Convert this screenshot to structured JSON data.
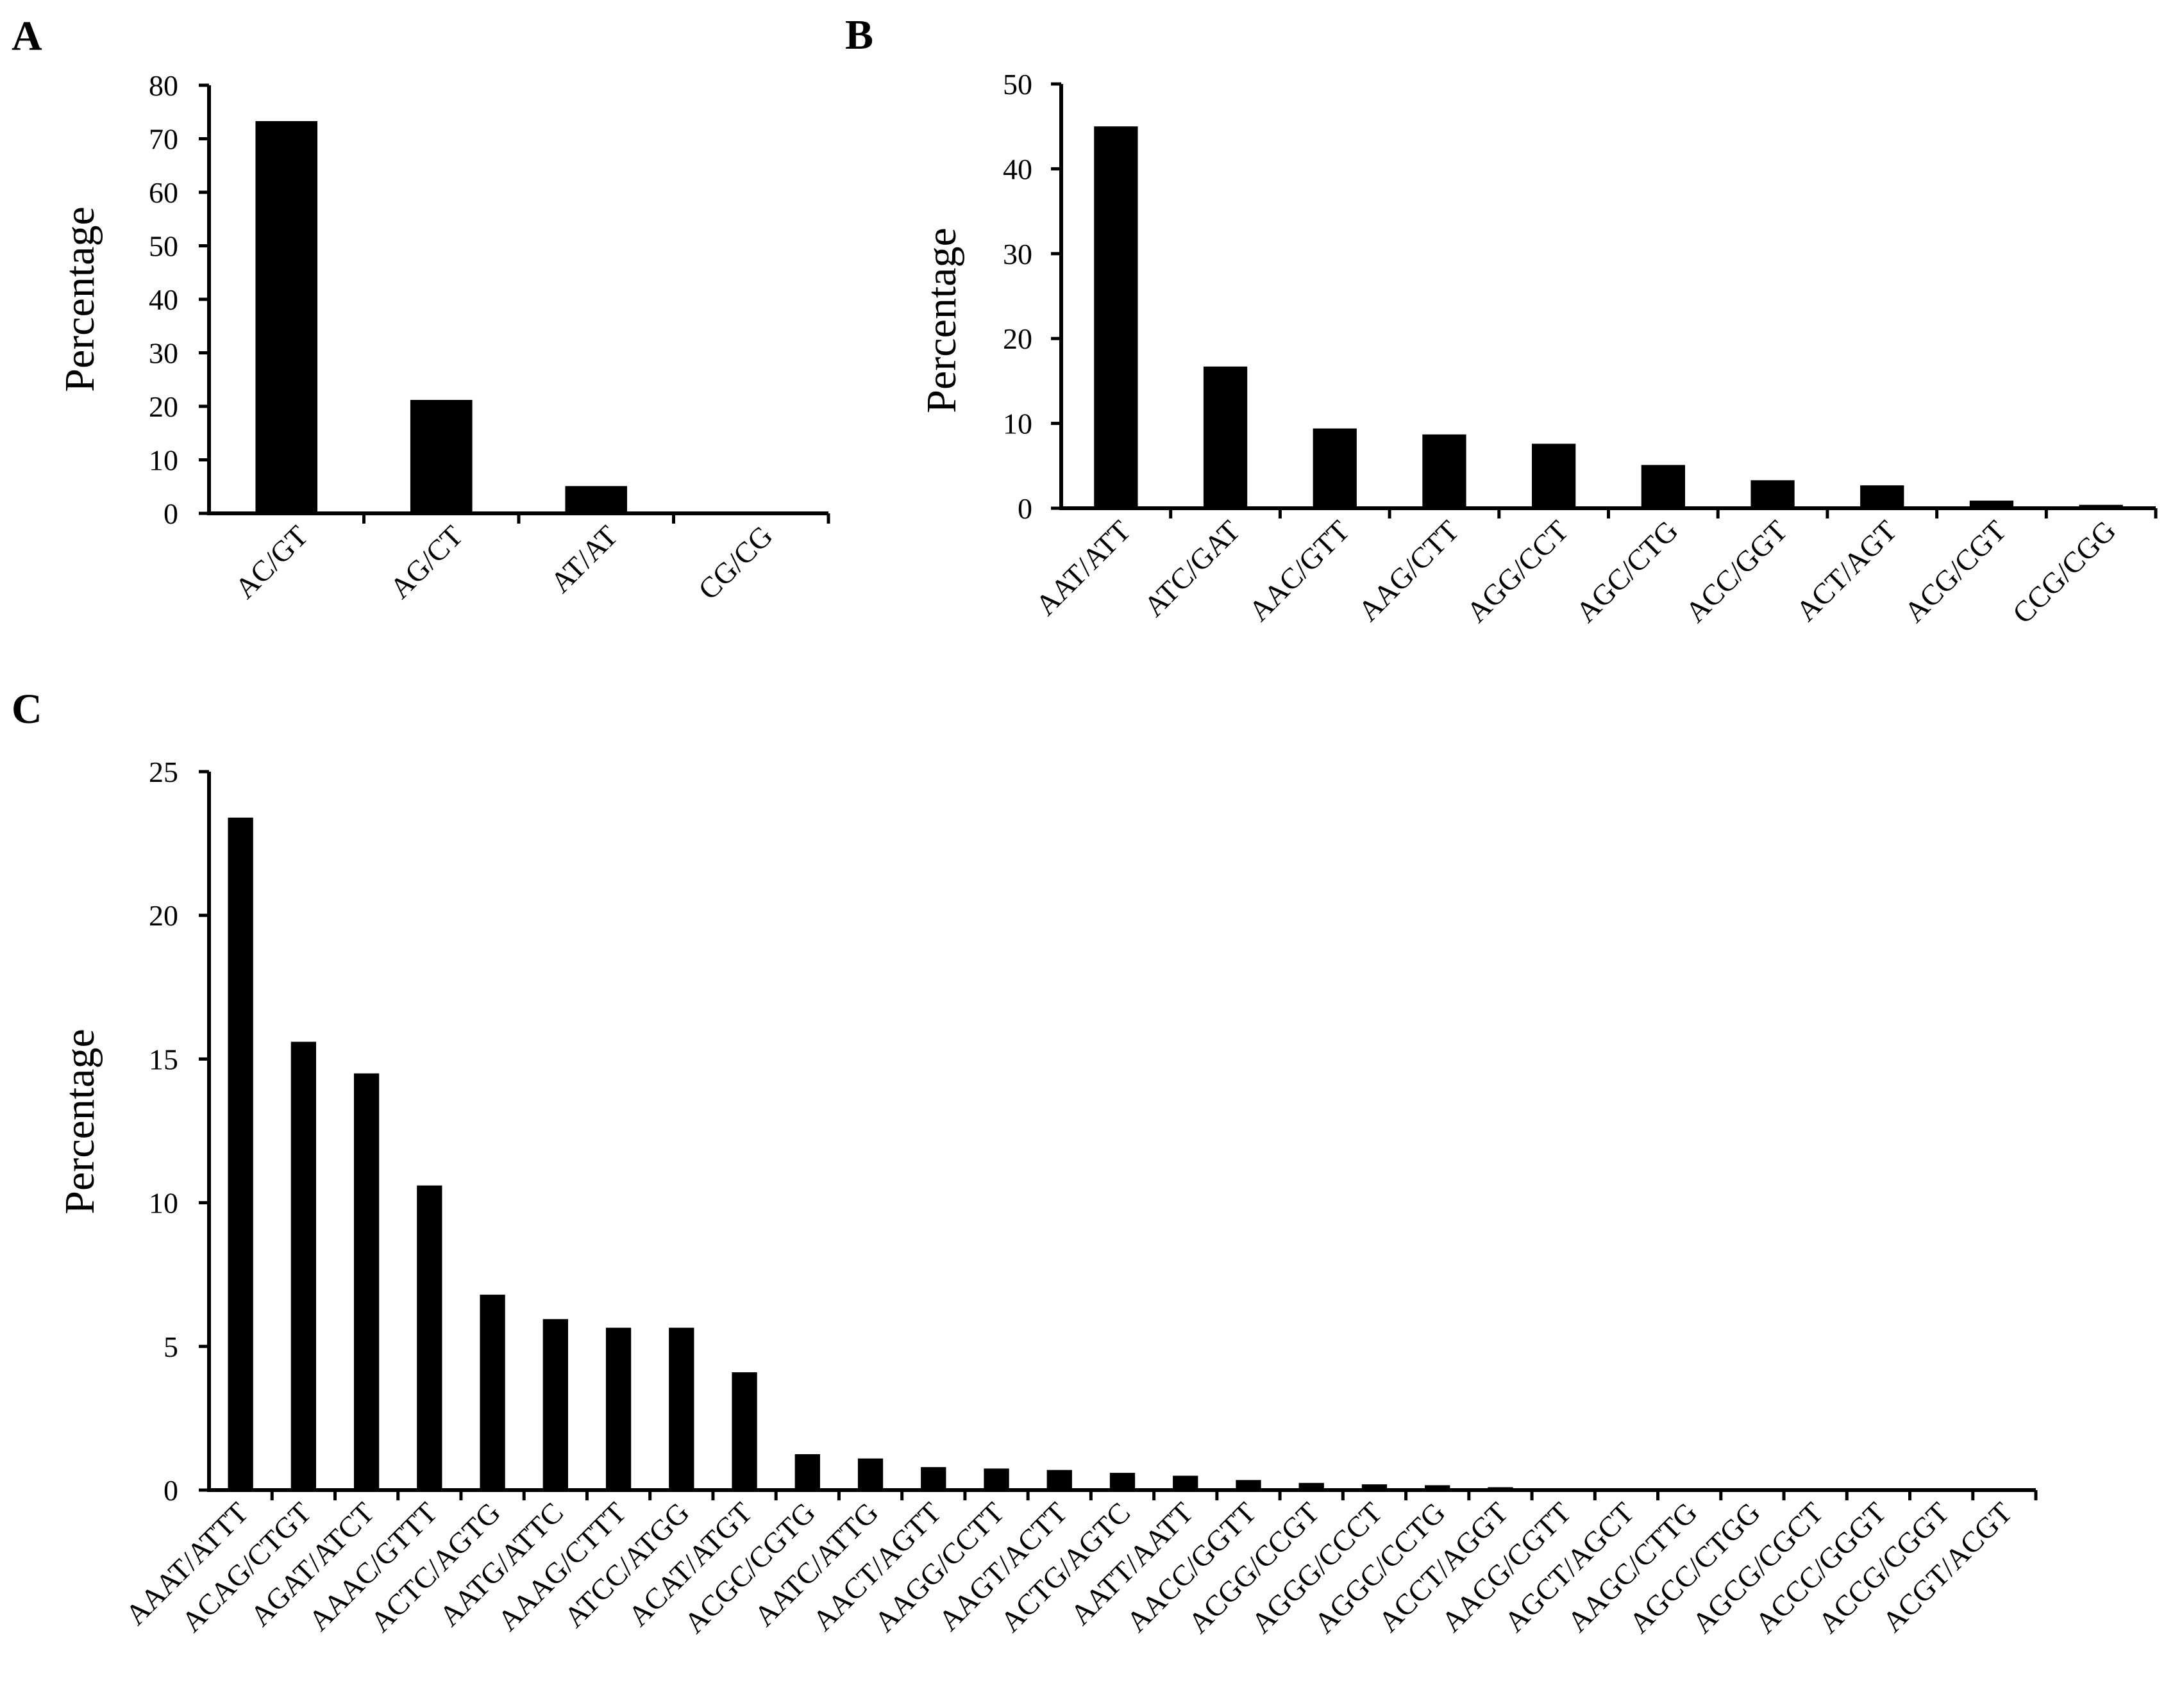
{
  "chart_data": [
    {
      "panel": "A",
      "type": "bar",
      "title": "",
      "xlabel": "",
      "ylabel": "Percentage",
      "ylim": [
        0,
        80
      ],
      "yticks": [
        0,
        10,
        20,
        30,
        40,
        50,
        60,
        70,
        80
      ],
      "categories": [
        "AC/GT",
        "AG/CT",
        "AT/AT",
        "CG/CG"
      ],
      "values": [
        73.3,
        21.2,
        5.1,
        0.1
      ],
      "color": "#000000"
    },
    {
      "panel": "B",
      "type": "bar",
      "title": "",
      "xlabel": "",
      "ylabel": "Percentage",
      "ylim": [
        0,
        50
      ],
      "yticks": [
        0,
        10,
        20,
        30,
        40,
        50
      ],
      "categories": [
        "AAT/ATT",
        "ATC/GAT",
        "AAC/GTT",
        "AAG/CTT",
        "AGG/CCT",
        "AGC/CTG",
        "ACC/GGT",
        "ACT/AGT",
        "ACG/CGT",
        "CCG/CGG"
      ],
      "values": [
        45.0,
        16.7,
        9.4,
        8.7,
        7.6,
        5.1,
        3.3,
        2.7,
        0.9,
        0.4
      ],
      "color": "#000000"
    },
    {
      "panel": "C",
      "type": "bar",
      "title": "",
      "xlabel": "",
      "ylabel": "Percentage",
      "ylim": [
        0,
        25
      ],
      "yticks": [
        0,
        5,
        10,
        15,
        20,
        25
      ],
      "categories": [
        "AAAT/ATTT",
        "ACAG/CTGT",
        "AGAT/ATCT",
        "AAAC/GTTT",
        "ACTC/AGTG",
        "AATG/ATTC",
        "AAAG/CTTT",
        "ATCC/ATGG",
        "ACAT/ATGT",
        "ACGC/CGTG",
        "AATC/ATTG",
        "AACT/AGTT",
        "AAGG/CCTT",
        "AAGT/ACTT",
        "ACTG/AGTC",
        "AATT/AATT",
        "AACC/GGTT",
        "ACGG/CCGT",
        "AGGG/CCCT",
        "AGGC/CCTG",
        "ACCT/AGGT",
        "AACG/CGTT",
        "AGCT/AGCT",
        "AAGC/CTTG",
        "AGCC/CTGG",
        "AGCG/CGCT",
        "ACCC/GGGT",
        "ACCG/CGGT",
        "ACGT/ACGT"
      ],
      "values": [
        23.4,
        15.6,
        14.5,
        10.6,
        6.8,
        5.95,
        5.65,
        5.65,
        4.1,
        1.25,
        1.1,
        0.8,
        0.75,
        0.7,
        0.6,
        0.5,
        0.35,
        0.25,
        0.2,
        0.17,
        0.1,
        0.05,
        0.02,
        0.02,
        0.02,
        0.02,
        0.02,
        0.02,
        0.02
      ],
      "color": "#000000"
    }
  ]
}
